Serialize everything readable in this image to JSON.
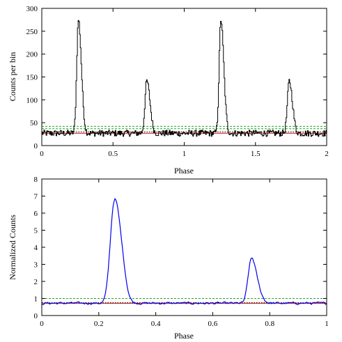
{
  "chart_data": [
    {
      "type": "line",
      "title": "",
      "xlabel": "Phase",
      "ylabel": "Counts per bin",
      "xlim": [
        0,
        2
      ],
      "ylim": [
        0,
        300
      ],
      "xticks": [
        0,
        0.5,
        1,
        1.5,
        2
      ],
      "xtick_labels": [
        "0",
        "0.5",
        "1",
        "1.5",
        "2"
      ],
      "yticks": [
        0,
        50,
        100,
        150,
        200,
        250,
        300
      ],
      "ytick_labels": [
        "0",
        "50",
        "100",
        "150",
        "200",
        "250",
        "300"
      ],
      "style": "histogram-step",
      "baseline": 27,
      "peaks": [
        {
          "phase": 0.255,
          "height": 275,
          "width": 0.012
        },
        {
          "phase": 0.735,
          "height": 141,
          "width": 0.013
        },
        {
          "phase": 1.255,
          "height": 275,
          "width": 0.012
        },
        {
          "phase": 1.735,
          "height": 141,
          "width": 0.013
        }
      ],
      "reference_lines": [
        {
          "y": 27,
          "color": "#cc0000",
          "style": "solid"
        },
        {
          "y": 30,
          "color": "#000000",
          "style": "dotted"
        },
        {
          "y": 37,
          "color": "#22aa22",
          "style": "dashed"
        },
        {
          "y": 42,
          "color": "#22aa22",
          "style": "dashed"
        }
      ],
      "series_color": "#000000",
      "grid": false
    },
    {
      "type": "line",
      "title": "",
      "xlabel": "Phase",
      "ylabel": "Normalized Counts",
      "xlim": [
        0,
        1
      ],
      "ylim": [
        0,
        8
      ],
      "xticks": [
        0,
        0.2,
        0.4,
        0.6,
        0.8,
        1
      ],
      "xtick_labels": [
        "0",
        "0.2",
        "0.4",
        "0.6",
        "0.8",
        "1"
      ],
      "yticks": [
        0,
        1,
        2,
        3,
        4,
        5,
        6,
        7,
        8
      ],
      "ytick_labels": [
        "0",
        "1",
        "2",
        "3",
        "4",
        "5",
        "6",
        "7",
        "8"
      ],
      "baseline": 0.72,
      "peaks": [
        {
          "phase": 0.252,
          "height": 7.02,
          "width": 0.014
        },
        {
          "phase": 0.733,
          "height": 3.5,
          "width": 0.011
        }
      ],
      "reference_lines": [
        {
          "y": 0.72,
          "color": "#cc0000",
          "style": "solid"
        },
        {
          "y": 0.75,
          "color": "#000000",
          "style": "dotted"
        },
        {
          "y": 1.0,
          "color": "#22aa22",
          "style": "dashed"
        }
      ],
      "series_color": "#0000ee",
      "grid": false
    }
  ]
}
